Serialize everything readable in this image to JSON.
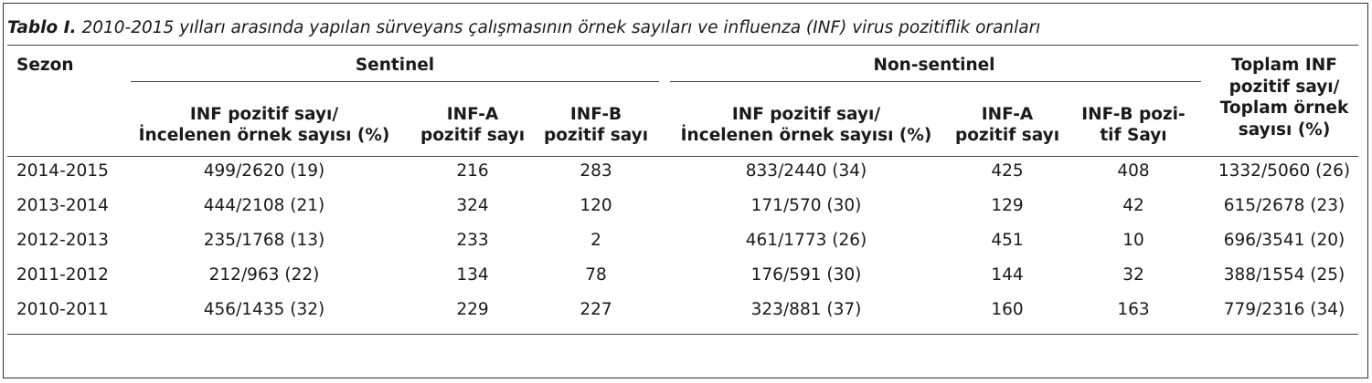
{
  "caption": {
    "label": "Tablo I.",
    "text": "2010-2015 yılları arasında yapılan sürveyans çalışmasının örnek sayıları ve influenza (INF) virus pozitiflik oranları"
  },
  "headers": {
    "sezon": "Sezon",
    "sentinel": "Sentinel",
    "non_sentinel": "Non-sentinel",
    "toplam": [
      "Toplam INF",
      "pozitif sayı/",
      "Toplam örnek",
      "sayısı (%)"
    ],
    "sent_inf": [
      "INF pozitif sayı/",
      "İncelenen örnek sayısı (%)"
    ],
    "sent_infa": [
      "INF-A",
      "pozitif sayı"
    ],
    "sent_infb": [
      "INF-B",
      "pozitif sayı"
    ],
    "non_inf": [
      "INF pozitif sayı/",
      "İncelenen örnek sayısı (%)"
    ],
    "non_infa": [
      "INF-A",
      "pozitif sayı"
    ],
    "non_infb": [
      "INF-B pozi-",
      "tif Sayı"
    ]
  },
  "rows": [
    [
      "2014-2015",
      "499/2620 (19)",
      "216",
      "283",
      "833/2440 (34)",
      "425",
      "408",
      "1332/5060 (26)"
    ],
    [
      "2013-2014",
      "444/2108 (21)",
      "324",
      "120",
      "171/570 (30)",
      "129",
      "42",
      "615/2678 (23)"
    ],
    [
      "2012-2013",
      "235/1768 (13)",
      "233",
      "2",
      "461/1773 (26)",
      "451",
      "10",
      "696/3541 (20)"
    ],
    [
      "2011-2012",
      "212/963 (22)",
      "134",
      "78",
      "176/591 (30)",
      "144",
      "32",
      "388/1554 (25)"
    ],
    [
      "2010-2011",
      "456/1435 (32)",
      "229",
      "227",
      "323/881 (37)",
      "160",
      "163",
      "779/2316 (34)"
    ]
  ]
}
